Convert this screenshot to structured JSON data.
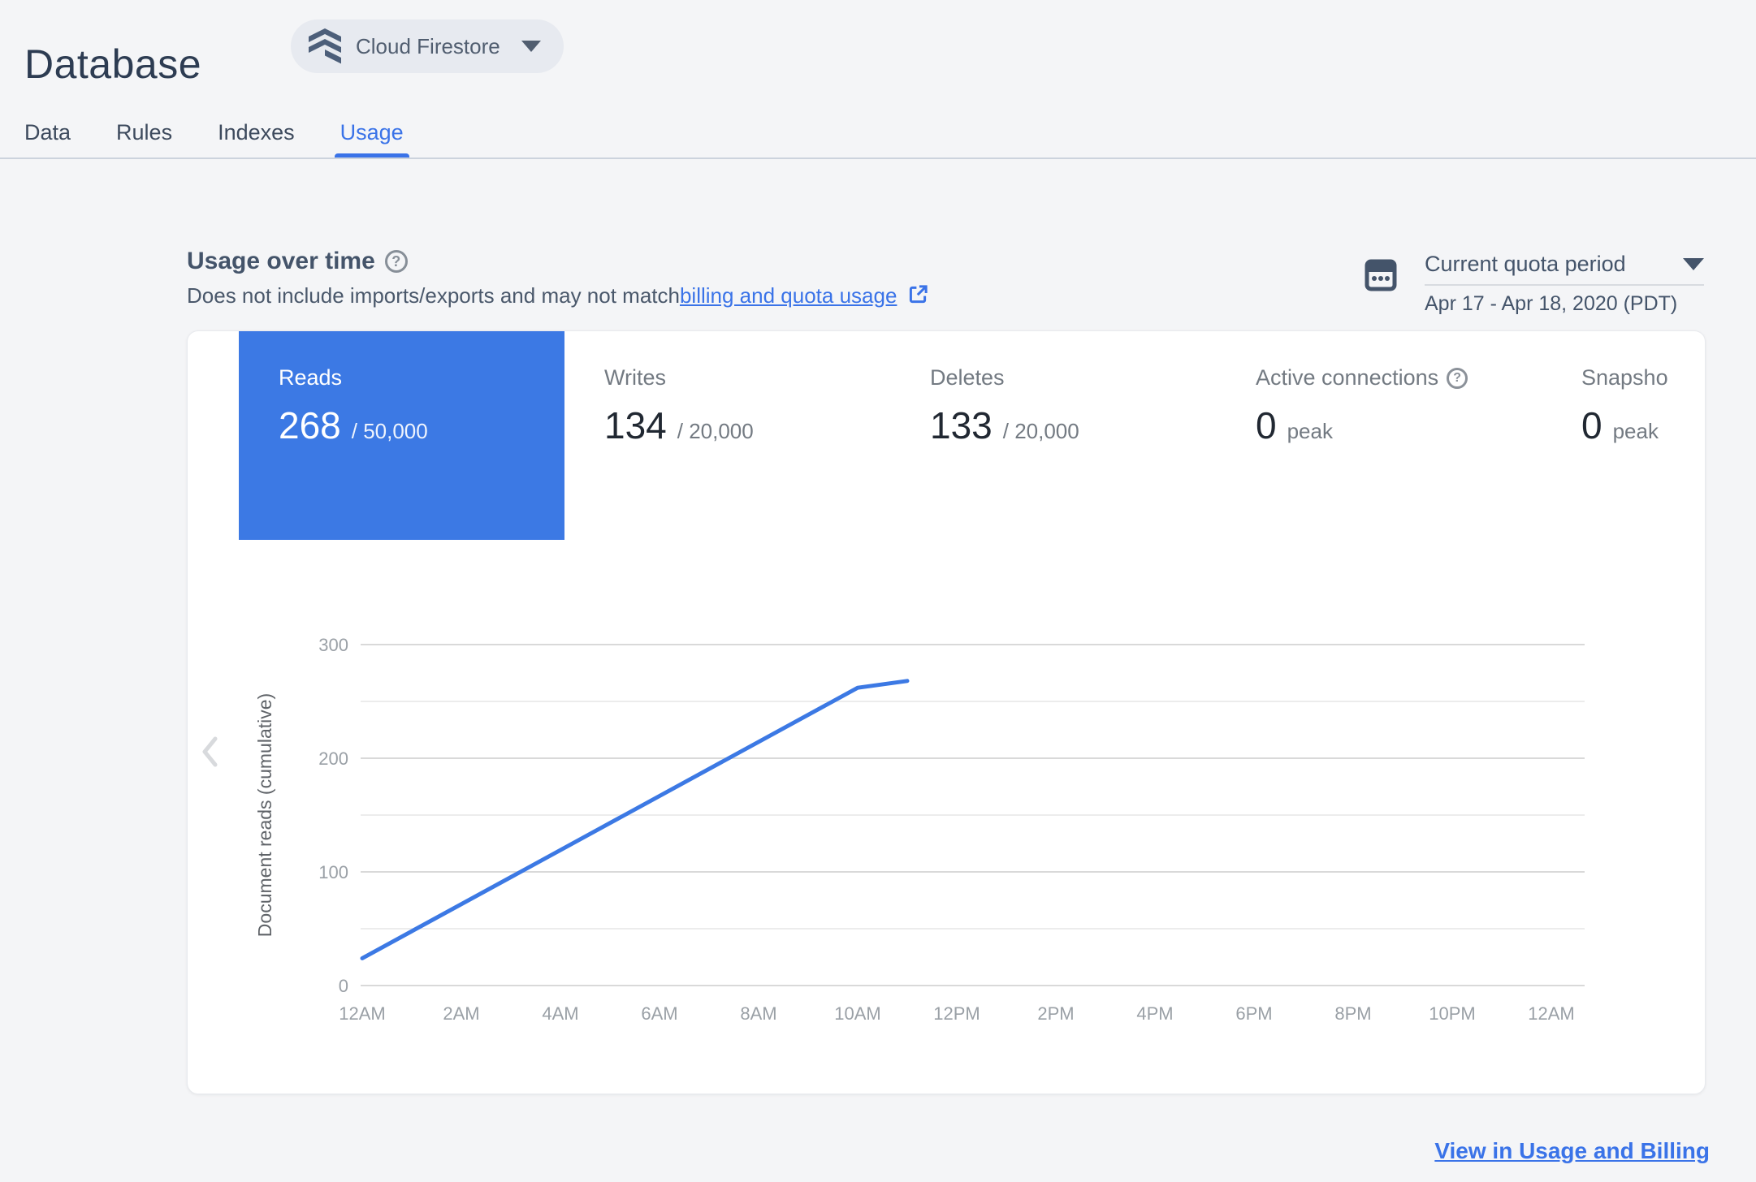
{
  "header": {
    "title": "Database",
    "product_selector": {
      "label": "Cloud Firestore"
    }
  },
  "tabs": [
    {
      "label": "Data",
      "active": false
    },
    {
      "label": "Rules",
      "active": false
    },
    {
      "label": "Indexes",
      "active": false
    },
    {
      "label": "Usage",
      "active": true
    }
  ],
  "usage_section": {
    "title": "Usage over time",
    "description_prefix": "Does not include imports/exports and may not match ",
    "description_link": "billing and quota usage",
    "quota_period": {
      "label": "Current quota period",
      "range": "Apr 17 - Apr 18, 2020 (PDT)"
    }
  },
  "metrics": [
    {
      "label": "Reads",
      "value": "268",
      "suffix": "/ 50,000",
      "selected": true,
      "help": false
    },
    {
      "label": "Writes",
      "value": "134",
      "suffix": "/ 20,000",
      "selected": false,
      "help": false
    },
    {
      "label": "Deletes",
      "value": "133",
      "suffix": "/ 20,000",
      "selected": false,
      "help": false
    },
    {
      "label": "Active connections",
      "value": "0",
      "suffix": "peak",
      "selected": false,
      "help": true
    },
    {
      "label": "Snapsho",
      "value": "0",
      "suffix": "peak",
      "selected": false,
      "help": false
    }
  ],
  "chart_data": {
    "type": "line",
    "title": "",
    "xlabel": "",
    "ylabel": "Document reads (cumulative)",
    "ylim": [
      0,
      300
    ],
    "y_major_ticks": [
      0,
      100,
      200,
      300
    ],
    "y_minor_ticks": [
      50,
      150,
      250
    ],
    "x_unit": "hour-of-day",
    "xlim_hours": [
      0,
      24
    ],
    "x_ticks": [
      {
        "hour": 0,
        "label": "12AM"
      },
      {
        "hour": 2,
        "label": "2AM"
      },
      {
        "hour": 4,
        "label": "4AM"
      },
      {
        "hour": 6,
        "label": "6AM"
      },
      {
        "hour": 8,
        "label": "8AM"
      },
      {
        "hour": 10,
        "label": "10AM"
      },
      {
        "hour": 12,
        "label": "12PM"
      },
      {
        "hour": 14,
        "label": "2PM"
      },
      {
        "hour": 16,
        "label": "4PM"
      },
      {
        "hour": 18,
        "label": "6PM"
      },
      {
        "hour": 20,
        "label": "8PM"
      },
      {
        "hour": 22,
        "label": "10PM"
      },
      {
        "hour": 24,
        "label": "12AM"
      }
    ],
    "grid": "horizontal",
    "legend": "none",
    "series": [
      {
        "name": "Document reads (cumulative)",
        "color": "#3c79e4",
        "points_hour_value": [
          [
            0,
            24
          ],
          [
            10,
            262
          ],
          [
            11,
            268
          ]
        ]
      }
    ]
  },
  "footer": {
    "link_label": "View in Usage and Billing"
  },
  "icons": {
    "help_glyph": "?"
  },
  "colors": {
    "accent_blue": "#3c79e4",
    "link_blue": "#3a73e8",
    "heading_slate": "#2d3c52",
    "axis_gray": "#9aa0a6",
    "grid_major": "#d9d9d9",
    "grid_minor": "#ececec"
  }
}
